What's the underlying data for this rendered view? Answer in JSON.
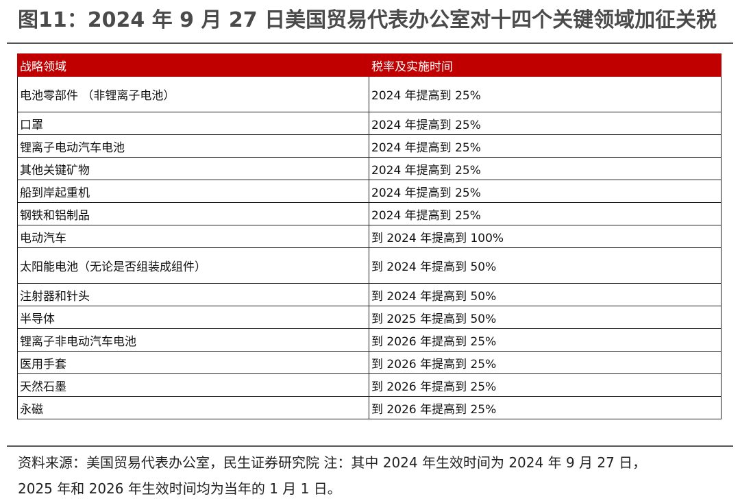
{
  "title": "图11：2024 年 9 月 27 日美国贸易代表办公室对十四个关键领域加征关税",
  "table": {
    "headers": [
      "战略领域",
      "税率及实施时间"
    ],
    "rows": [
      {
        "sector": "电池零部件 （非锂离子电池）",
        "rate": "2024 年提高到 25%"
      },
      {
        "sector": "口罩",
        "rate": "2024 年提高到 25%"
      },
      {
        "sector": "锂离子电动汽车电池",
        "rate": "2024 年提高到 25%"
      },
      {
        "sector": "其他关键矿物",
        "rate": "2024 年提高到 25%"
      },
      {
        "sector": "船到岸起重机",
        "rate": "2024 年提高到 25%"
      },
      {
        "sector": "钢铁和铝制品",
        "rate": "2024 年提高到 25%"
      },
      {
        "sector": "电动汽车",
        "rate": "到 2024 年提高到 100%"
      },
      {
        "sector": "太阳能电池（无论是否组装成组件）",
        "rate": "到 2024 年提高到 50%"
      },
      {
        "sector": "注射器和针头",
        "rate": "到 2024 年提高到 50%"
      },
      {
        "sector": "半导体",
        "rate": "到 2025 年提高到 50%"
      },
      {
        "sector": "锂离子非电动汽车电池",
        "rate": "到 2026 年提高到 25%"
      },
      {
        "sector": "医用手套",
        "rate": "到 2026 年提高到 25%"
      },
      {
        "sector": "天然石墨",
        "rate": "到 2026 年提高到 25%"
      },
      {
        "sector": "永磁",
        "rate": "到 2026 年提高到 25%"
      }
    ]
  },
  "source_note": {
    "line1": "资料来源：美国贸易代表办公室，民生证券研究院 注：其中 2024 年生效时间为 2024 年 9 月 27 日，",
    "line2": "2025 年和 2026 年生效时间均为当年的 1 月 1 日。"
  }
}
